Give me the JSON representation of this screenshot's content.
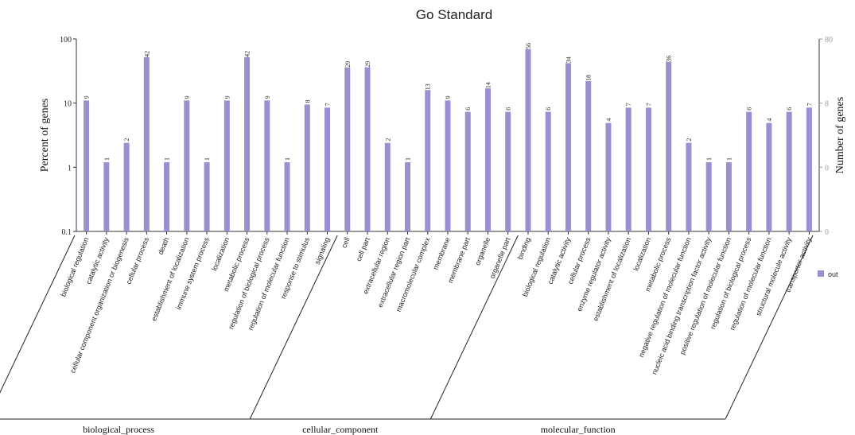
{
  "chart_data": {
    "type": "bar",
    "title": "Go Standard",
    "ylabel_left": "Percent of genes",
    "ylabel_right": "Number of genes",
    "y_scale": "log",
    "ylim_left": [
      0.1,
      100
    ],
    "left_ticks": [
      "100",
      "10",
      "1",
      "0.1"
    ],
    "right_ticks": [
      "80",
      "8",
      "0",
      "0"
    ],
    "legend_position": "right",
    "series": [
      {
        "name": "out",
        "color": "#9b8fd0"
      }
    ],
    "groups": [
      {
        "name": "biological_process",
        "categories": [
          {
            "label": "biological regulation",
            "percent": 11,
            "count": "9"
          },
          {
            "label": "catalytic activity",
            "percent": 1.2,
            "count": "1"
          },
          {
            "label": "cellular component organization or biogenesis",
            "percent": 2.4,
            "count": "2"
          },
          {
            "label": "cellular process",
            "percent": 52,
            "count": "42"
          },
          {
            "label": "death",
            "percent": 1.2,
            "count": "1"
          },
          {
            "label": "establishment of localization",
            "percent": 11,
            "count": "9"
          },
          {
            "label": "immune system process",
            "percent": 1.2,
            "count": "1"
          },
          {
            "label": "localization",
            "percent": 11,
            "count": "9"
          },
          {
            "label": "metabolic process",
            "percent": 52,
            "count": "42"
          },
          {
            "label": "regulation of biological process",
            "percent": 11,
            "count": "9"
          },
          {
            "label": "regulation of molecular function",
            "percent": 1.2,
            "count": "1"
          },
          {
            "label": "response to stimulus",
            "percent": 9.5,
            "count": "8"
          },
          {
            "label": "signaling",
            "percent": 8.5,
            "count": "7"
          }
        ]
      },
      {
        "name": "cellular_component",
        "categories": [
          {
            "label": "cell",
            "percent": 36,
            "count": "29"
          },
          {
            "label": "cell part",
            "percent": 36,
            "count": "29"
          },
          {
            "label": "extracellular region",
            "percent": 2.4,
            "count": "2"
          },
          {
            "label": "extracellular region part",
            "percent": 1.2,
            "count": "1"
          },
          {
            "label": "macromolecular complex",
            "percent": 16,
            "count": "13"
          },
          {
            "label": "membrane",
            "percent": 11,
            "count": "9"
          },
          {
            "label": "membrane part",
            "percent": 7.3,
            "count": "6"
          },
          {
            "label": "organelle",
            "percent": 17,
            "count": "14"
          },
          {
            "label": "organelle part",
            "percent": 7.3,
            "count": "6"
          }
        ]
      },
      {
        "name": "molecular_function",
        "categories": [
          {
            "label": "binding",
            "percent": 69,
            "count": "56"
          },
          {
            "label": "biological regulation",
            "percent": 7.3,
            "count": "6"
          },
          {
            "label": "catalytic activity",
            "percent": 42,
            "count": "34"
          },
          {
            "label": "cellular process",
            "percent": 22,
            "count": "18"
          },
          {
            "label": "enzyme regulator activity",
            "percent": 4.9,
            "count": "4"
          },
          {
            "label": "establishment of localization",
            "percent": 8.5,
            "count": "7"
          },
          {
            "label": "localization",
            "percent": 8.5,
            "count": "7"
          },
          {
            "label": "metabolic process",
            "percent": 44,
            "count": "36"
          },
          {
            "label": "negative regulation of molecular function",
            "percent": 2.4,
            "count": "2"
          },
          {
            "label": "nucleic acid binding transcription factor activity",
            "percent": 1.2,
            "count": "1"
          },
          {
            "label": "positive regulation of molecular function",
            "percent": 1.2,
            "count": "1"
          },
          {
            "label": "regulation of biological process",
            "percent": 7.3,
            "count": "6"
          },
          {
            "label": "regulation of molecular function",
            "percent": 4.9,
            "count": "4"
          },
          {
            "label": "structural molecule activity",
            "percent": 7.3,
            "count": "6"
          },
          {
            "label": "transporter activity",
            "percent": 8.5,
            "count": "7"
          }
        ]
      }
    ]
  }
}
